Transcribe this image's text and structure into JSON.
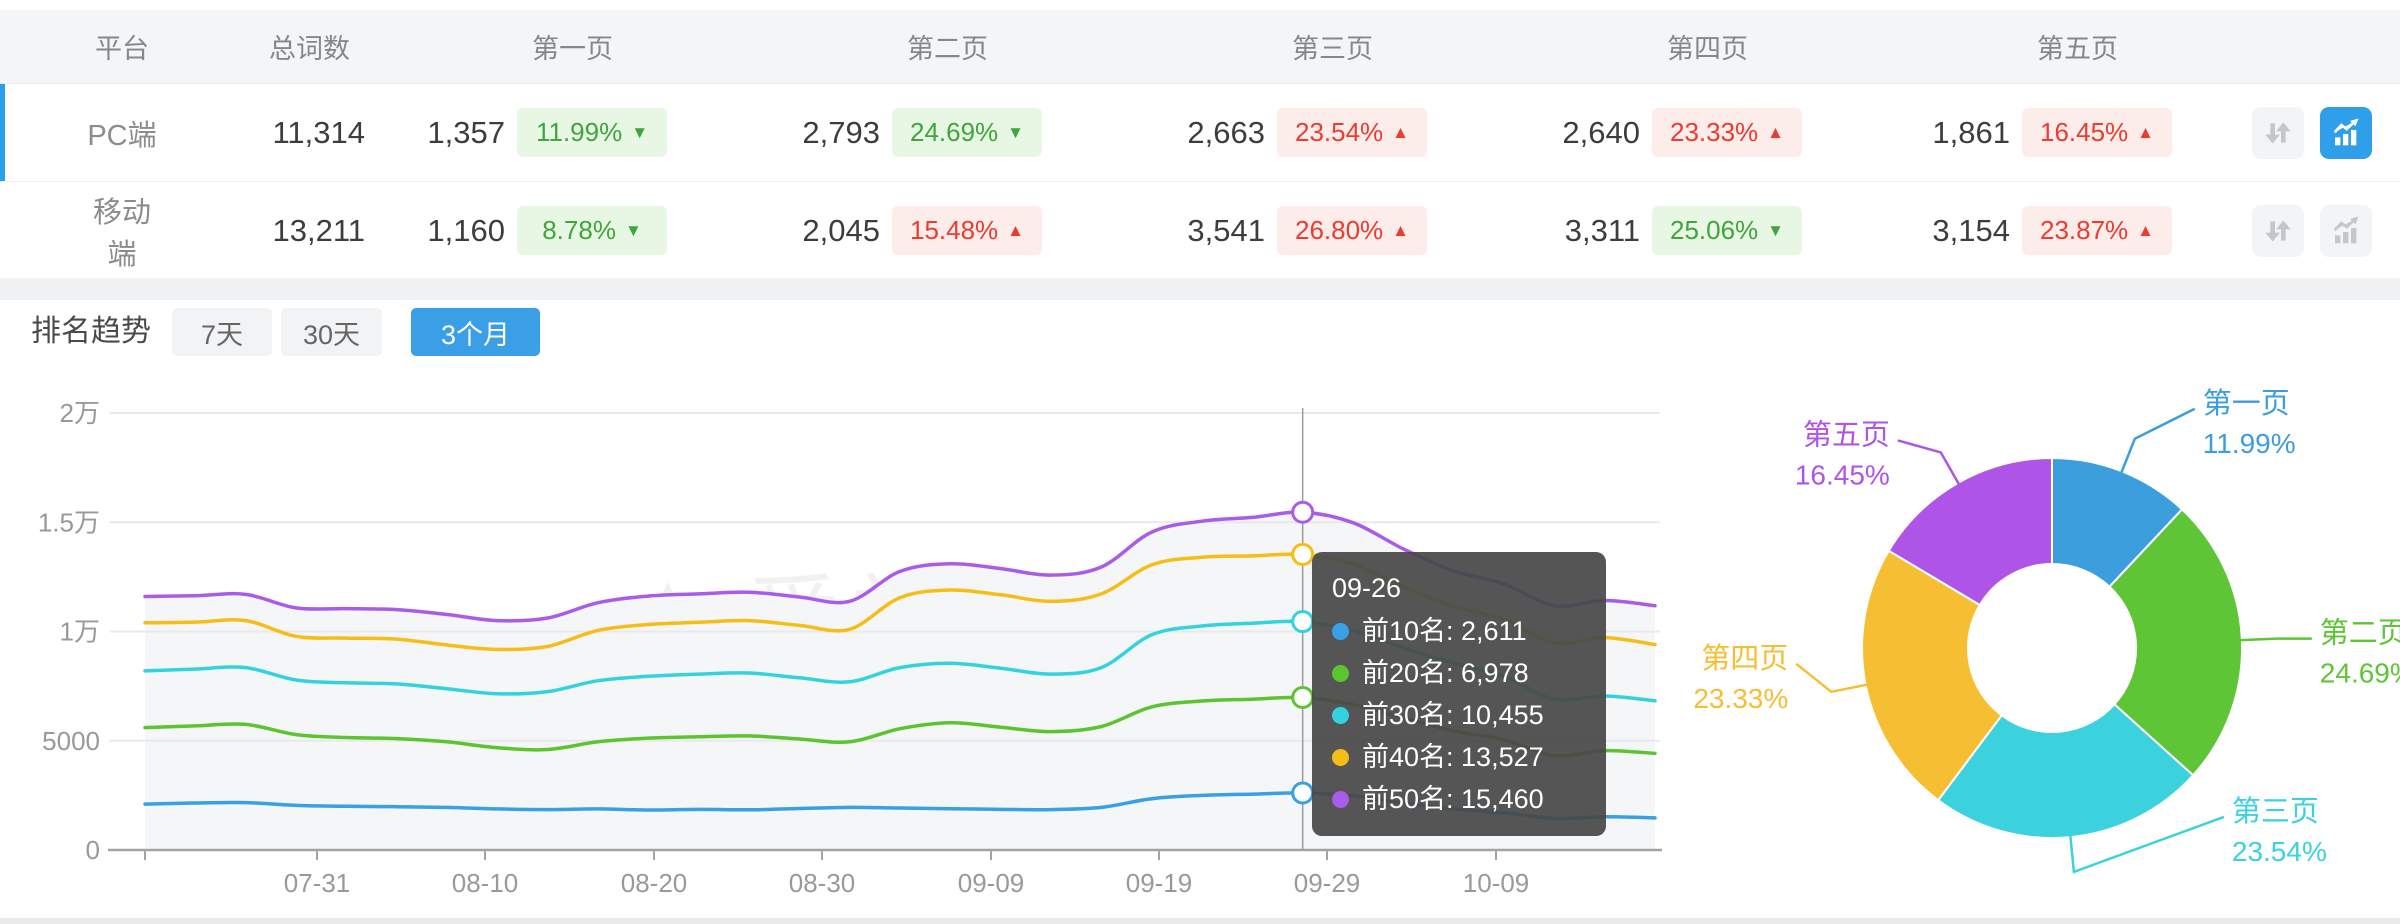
{
  "table": {
    "headers": {
      "platform": "平台",
      "total": "总词数",
      "pages": [
        "第一页",
        "第二页",
        "第三页",
        "第四页",
        "第五页"
      ]
    },
    "rows": [
      {
        "platform": "PC端",
        "selected": true,
        "total": "11,314",
        "chart_active": true,
        "pages": [
          {
            "count": "1,357",
            "pct": "11.99%",
            "dir": "down",
            "trend": "good"
          },
          {
            "count": "2,793",
            "pct": "24.69%",
            "dir": "down",
            "trend": "good"
          },
          {
            "count": "2,663",
            "pct": "23.54%",
            "dir": "up",
            "trend": "bad"
          },
          {
            "count": "2,640",
            "pct": "23.33%",
            "dir": "up",
            "trend": "bad"
          },
          {
            "count": "1,861",
            "pct": "16.45%",
            "dir": "up",
            "trend": "bad"
          }
        ]
      },
      {
        "platform": "移动端",
        "selected": false,
        "total": "13,211",
        "chart_active": false,
        "pages": [
          {
            "count": "1,160",
            "pct": "8.78%",
            "dir": "down",
            "trend": "good"
          },
          {
            "count": "2,045",
            "pct": "15.48%",
            "dir": "up",
            "trend": "bad"
          },
          {
            "count": "3,541",
            "pct": "26.80%",
            "dir": "up",
            "trend": "bad"
          },
          {
            "count": "3,311",
            "pct": "25.06%",
            "dir": "down",
            "trend": "good"
          },
          {
            "count": "3,154",
            "pct": "23.87%",
            "dir": "up",
            "trend": "bad"
          }
        ]
      }
    ]
  },
  "trend": {
    "title": "排名趋势",
    "tabs": [
      {
        "label": "7天",
        "active": false
      },
      {
        "label": "30天",
        "active": false
      },
      {
        "label": "3个月",
        "active": true
      }
    ]
  },
  "watermark": "爱站网",
  "chart_data": [
    {
      "type": "line",
      "title": "排名趋势(3个月)",
      "y_ticks": [
        {
          "label": "2万",
          "value": 20000
        },
        {
          "label": "1.5万",
          "value": 15000
        },
        {
          "label": "1万",
          "value": 10000
        },
        {
          "label": "5000",
          "value": 5000
        },
        {
          "label": "0",
          "value": 0
        }
      ],
      "ylim": [
        0,
        20000
      ],
      "x_ticks": [
        "07-31",
        "08-10",
        "08-20",
        "08-30",
        "09-09",
        "09-19",
        "09-29",
        "10-09"
      ],
      "marker_index": 23,
      "tooltip": {
        "title": "09-26",
        "items": [
          {
            "name": "前10名",
            "value": "2,611"
          },
          {
            "name": "前20名",
            "value": "6,978"
          },
          {
            "name": "前30名",
            "value": "10,455"
          },
          {
            "name": "前40名",
            "value": "13,527"
          },
          {
            "name": "前50名",
            "value": "15,460"
          }
        ]
      },
      "series": [
        {
          "name": "前10名",
          "color": "#38A0E4",
          "values": [
            2100,
            2150,
            2170,
            2040,
            2000,
            1980,
            1950,
            1880,
            1850,
            1880,
            1830,
            1860,
            1840,
            1900,
            1950,
            1920,
            1890,
            1860,
            1850,
            1950,
            2350,
            2500,
            2560,
            2611,
            2480,
            2150,
            1880,
            1700,
            1450,
            1520,
            1470
          ]
        },
        {
          "name": "前20名",
          "color": "#5CC431",
          "values": [
            5600,
            5680,
            5750,
            5280,
            5150,
            5100,
            4950,
            4680,
            4600,
            4950,
            5120,
            5180,
            5220,
            5080,
            4950,
            5550,
            5820,
            5620,
            5420,
            5650,
            6550,
            6820,
            6900,
            6978,
            6650,
            6050,
            5450,
            5050,
            4320,
            4550,
            4420
          ]
        },
        {
          "name": "前30名",
          "color": "#32D3DE",
          "values": [
            8200,
            8280,
            8350,
            7780,
            7650,
            7600,
            7380,
            7150,
            7250,
            7750,
            7950,
            8050,
            8100,
            7880,
            7700,
            8350,
            8550,
            8320,
            8050,
            8350,
            9850,
            10250,
            10380,
            10455,
            10050,
            9250,
            8550,
            7950,
            6900,
            7050,
            6830
          ]
        },
        {
          "name": "前40名",
          "color": "#F6BD16",
          "values": [
            10400,
            10430,
            10500,
            9780,
            9700,
            9650,
            9380,
            9180,
            9320,
            10050,
            10320,
            10420,
            10500,
            10280,
            10100,
            11550,
            11900,
            11680,
            11380,
            11720,
            13050,
            13400,
            13460,
            13527,
            13080,
            12050,
            11150,
            10550,
            9480,
            9720,
            9400
          ]
        },
        {
          "name": "前50名",
          "color": "#A85CE8",
          "values": [
            11600,
            11640,
            11700,
            11080,
            11050,
            11000,
            10780,
            10500,
            10620,
            11320,
            11620,
            11720,
            11800,
            11580,
            11380,
            12750,
            13100,
            12880,
            12580,
            12950,
            14550,
            15050,
            15220,
            15460,
            14980,
            13780,
            12780,
            12180,
            11180,
            11420,
            11180
          ]
        }
      ]
    },
    {
      "type": "donut",
      "slices": [
        {
          "label": "第一页",
          "pct_label": "11.99%",
          "value": 11.99,
          "color": "#3C9EDC"
        },
        {
          "label": "第二页",
          "pct_label": "24.69%",
          "value": 24.69,
          "color": "#5EC636"
        },
        {
          "label": "第三页",
          "pct_label": "23.54%",
          "value": 23.54,
          "color": "#3BD2DE"
        },
        {
          "label": "第四页",
          "pct_label": "23.33%",
          "value": 23.33,
          "color": "#F6BE33"
        },
        {
          "label": "第五页",
          "pct_label": "16.45%",
          "value": 16.45,
          "color": "#AE55E8"
        }
      ]
    }
  ]
}
